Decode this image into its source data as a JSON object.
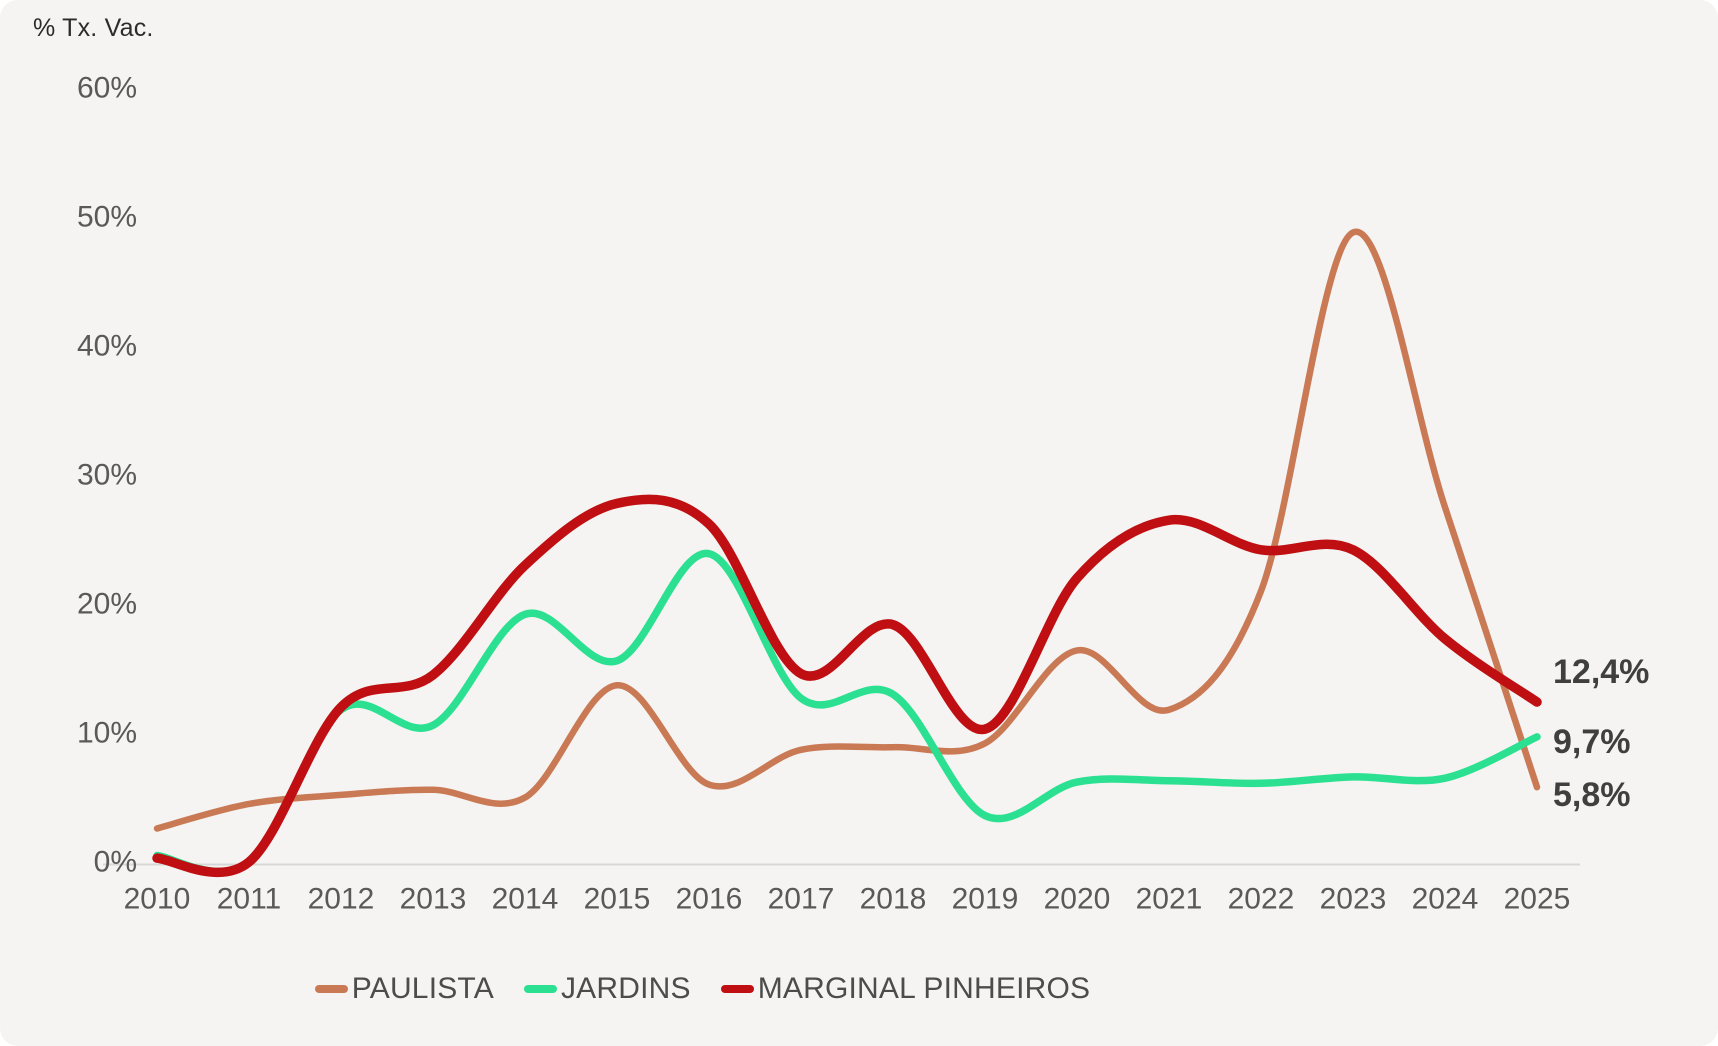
{
  "chart_title": "% Tx. Vac.",
  "chart_data": {
    "type": "line",
    "title": "% Tx. Vac.",
    "x": [
      2010,
      2011,
      2012,
      2013,
      2014,
      2015,
      2016,
      2017,
      2018,
      2019,
      2020,
      2021,
      2022,
      2023,
      2024,
      2025
    ],
    "x_tick_labels": [
      "2010",
      "2011",
      "2012",
      "2013",
      "2014",
      "2015",
      "2016",
      "2017",
      "2018",
      "2019",
      "2020",
      "2021",
      "2022",
      "2023",
      "2024",
      "2025"
    ],
    "y_ticks": [
      {
        "value": 60,
        "label": "60%"
      },
      {
        "value": 50,
        "label": "50%"
      },
      {
        "value": 40,
        "label": "40%"
      },
      {
        "value": 30,
        "label": "30%"
      },
      {
        "value": 20,
        "label": "20%"
      },
      {
        "value": 10,
        "label": "10%"
      },
      {
        "value": 0,
        "label": "0%"
      }
    ],
    "ylim": [
      0,
      62
    ],
    "grid": false,
    "legend_position": "bottom",
    "line_smoothing": "spline",
    "series": [
      {
        "name": "PAULISTA",
        "color": "#c97a55",
        "stroke_width": 6.5,
        "end_label": "5,8%",
        "values": [
          2.6,
          4.5,
          5.2,
          5.6,
          5.0,
          13.7,
          6.0,
          8.7,
          8.9,
          9.2,
          16.4,
          11.8,
          21.0,
          48.8,
          27.5,
          5.8
        ]
      },
      {
        "name": "JARDINS",
        "color": "#2ce092",
        "stroke_width": 7.5,
        "end_label": "9,7%",
        "values": [
          0.5,
          0.0,
          11.8,
          10.6,
          19.2,
          15.6,
          23.9,
          12.7,
          13.0,
          3.6,
          6.2,
          6.3,
          6.1,
          6.6,
          6.5,
          9.7
        ]
      },
      {
        "name": "MARGINAL PINHEIROS",
        "color": "#bf0f12",
        "stroke_width": 9.5,
        "end_label": "12,4%",
        "values": [
          0.3,
          0.0,
          12.0,
          14.5,
          23.0,
          27.8,
          26.2,
          14.6,
          18.4,
          10.3,
          22.0,
          26.5,
          24.2,
          24.2,
          17.3,
          12.4
        ]
      }
    ]
  },
  "legend": {
    "items": [
      {
        "label": "PAULISTA"
      },
      {
        "label": "JARDINS"
      },
      {
        "label": "MARGINAL PINHEIROS"
      }
    ]
  },
  "colors": {
    "background": "#f5f4f2",
    "axis_line": "#d7d7d7",
    "tick_text": "#595959",
    "end_label_text": "#3f3f3f",
    "legend_text": "#4c4c4c",
    "title_text": "#2b2b2b"
  }
}
